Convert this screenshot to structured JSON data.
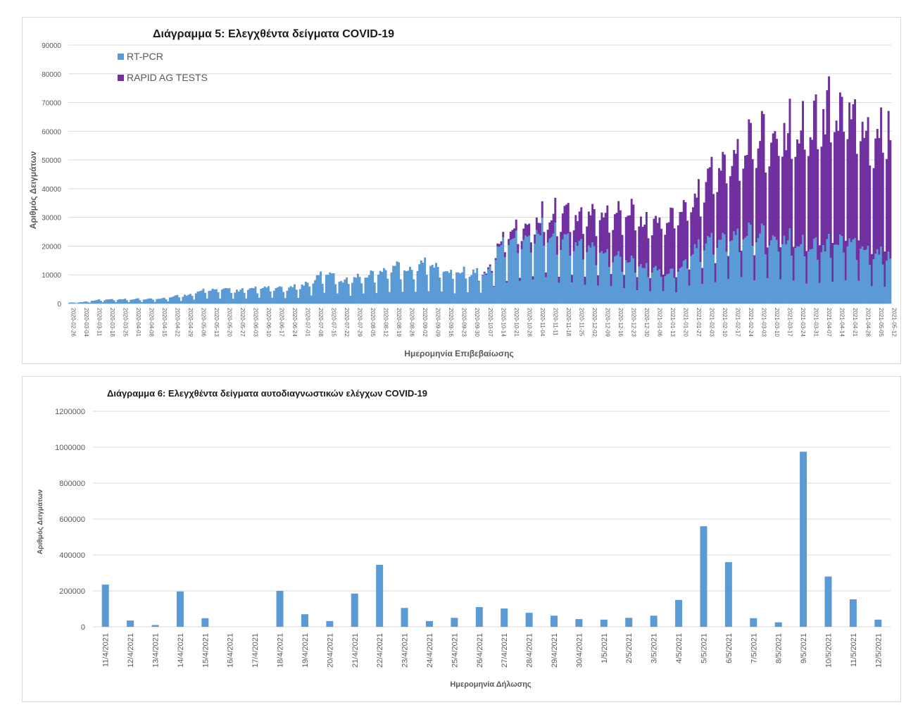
{
  "colors": {
    "rtpcr": "#5b9bd5",
    "rapid": "#7030a0",
    "self": "#5b9bd5",
    "grid": "#d9d9d9"
  },
  "chart_data": [
    {
      "type": "bar",
      "stacked": true,
      "title": "Διάγραμμα 5: Ελεγχθέντα δείγματα COVID-19",
      "xlabel": "Ημερομηνία Επιβεβαίωσης",
      "ylabel": "Αριθμός Δειγμάτων",
      "ylim": [
        0,
        90000
      ],
      "yticks": [
        0,
        10000,
        20000,
        30000,
        40000,
        50000,
        60000,
        70000,
        80000,
        90000
      ],
      "grid": true,
      "legend": "top-left",
      "x_tick_labels": [
        "2020-02-26",
        "2020-03-04",
        "2020-03-11",
        "2020-03-18",
        "2020-03-25",
        "2020-04-01",
        "2020-04-08",
        "2020-04-15",
        "2020-04-22",
        "2020-04-29",
        "2020-05-06",
        "2020-05-13",
        "2020-05-20",
        "2020-05-27",
        "2020-06-03",
        "2020-06-10",
        "2020-06-17",
        "2020-06-24",
        "2020-07-01",
        "2020-07-08",
        "2020-07-15",
        "2020-07-22",
        "2020-07-29",
        "2020-08-05",
        "2020-08-12",
        "2020-08-19",
        "2020-08-26",
        "2020-09-02",
        "2020-09-09",
        "2020-09-16",
        "2020-09-23",
        "2020-09-30",
        "2020-10-07",
        "2020-10-14",
        "2020-10-21",
        "2020-10-28",
        "2020-11-04",
        "2020-11-11",
        "2020-11-18",
        "2020-11-25",
        "2020-12-02",
        "2020-12-09",
        "2020-12-16",
        "2020-12-23",
        "2020-12-30",
        "2021-01-06",
        "2021-01-13",
        "2021-01-20",
        "2021-01-27",
        "2021-02-03",
        "2021-02-10",
        "2021-02-17",
        "2021-02-24",
        "2021-03-03",
        "2021-03-10",
        "2021-03-17",
        "2021-03-24",
        "2021-03-31",
        "2021-04-07",
        "2021-04-14",
        "2021-04-21",
        "2021-04-28",
        "2021-05-05",
        "2021-05-12"
      ],
      "series": [
        {
          "name": "RT-PCR",
          "weekly_typical": [
            300,
            500,
            1200,
            1400,
            1400,
            1500,
            1600,
            1800,
            2500,
            3000,
            4200,
            5000,
            5000,
            4500,
            5000,
            5500,
            5200,
            5500,
            6500,
            9000,
            11000,
            8000,
            9000,
            10000,
            11000,
            13500,
            11000,
            14000,
            13000,
            11000,
            11000,
            11000,
            10000,
            20000,
            22000,
            23000,
            25000,
            24000,
            22000,
            21000,
            19000,
            18000,
            17000,
            15000,
            13000,
            12000,
            11000,
            12000,
            20000,
            22000,
            23000,
            24000,
            25000,
            25000,
            22000,
            22000,
            21000,
            20000,
            20000,
            22000,
            22000,
            20000,
            18000,
            17000
          ]
        },
        {
          "name": "RAPID AG TESTS",
          "weekly_typical": [
            0,
            0,
            0,
            0,
            0,
            0,
            0,
            0,
            0,
            0,
            0,
            0,
            0,
            0,
            0,
            0,
            0,
            0,
            0,
            0,
            0,
            0,
            0,
            0,
            0,
            0,
            0,
            0,
            0,
            0,
            0,
            0,
            500,
            1000,
            3000,
            4000,
            4000,
            6000,
            9000,
            9000,
            11000,
            13000,
            15000,
            17000,
            15000,
            16000,
            19000,
            18000,
            17000,
            22000,
            25000,
            27000,
            30000,
            33000,
            33000,
            35000,
            38000,
            40000,
            45000,
            43000,
            44000,
            42000,
            40000,
            45000
          ]
        }
      ]
    },
    {
      "type": "bar",
      "title": "Διάγραμμα 6: Ελεγχθέντα δείγματα αυτοδιαγνωστικών ελέγχων COVID-19",
      "xlabel": "Ημερομηνία Δήλωσης",
      "ylabel": "Αριθμός Δειγμάτων",
      "ylim": [
        0,
        1200000
      ],
      "yticks": [
        0,
        200000,
        400000,
        600000,
        800000,
        1000000,
        1200000
      ],
      "grid": true,
      "categories": [
        "11/4/2021",
        "12/4/2021",
        "13/4/2021",
        "14/4/2021",
        "15/4/2021",
        "16/4/2021",
        "17/4/2021",
        "18/4/2021",
        "19/4/2021",
        "20/4/2021",
        "21/4/2021",
        "22/4/2021",
        "23/4/2021",
        "24/4/2021",
        "25/4/2021",
        "26/4/2021",
        "27/4/2021",
        "28/4/2021",
        "29/4/2021",
        "30/4/2021",
        "1/5/2021",
        "2/5/2021",
        "3/5/2021",
        "4/5/2021",
        "5/5/2021",
        "6/5/2021",
        "7/5/2021",
        "8/5/2021",
        "9/5/2021",
        "10/5/2021",
        "11/5/2021",
        "12/5/2021"
      ],
      "values": [
        235000,
        35000,
        10000,
        197000,
        48000,
        0,
        0,
        200000,
        70000,
        32000,
        185000,
        345000,
        105000,
        32000,
        50000,
        110000,
        102000,
        78000,
        62000,
        43000,
        40000,
        50000,
        62000,
        150000,
        560000,
        360000,
        48000,
        25000,
        975000,
        280000,
        153000,
        40000
      ]
    }
  ]
}
